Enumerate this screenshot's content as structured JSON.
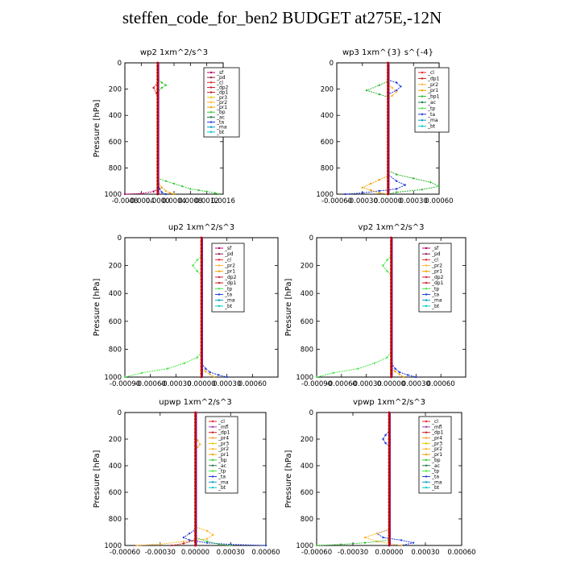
{
  "page": {
    "title": "steffen_code_for_ben2  BUDGET at275E,-12N"
  },
  "colors": {
    "sf": "#b8006e",
    "pd": "#8b2252",
    "cl": "#e8282a",
    "mfl": "#a040b0",
    "dp1": "#c81e1e",
    "dp2": "#d21e3c",
    "pr1": "#f0a000",
    "pr2": "#ffb432",
    "pr3": "#e6c800",
    "pr4": "#f0a028",
    "bp": "#3cc83c",
    "bp1": "#32b432",
    "ac": "#1e7850",
    "tp": "#46e646",
    "ta": "#1e3cdc",
    "ma": "#00a0c8",
    "bt": "#00c8c8"
  },
  "chart_data": [
    {
      "type": "line",
      "title": "wp2   1xm^2/s^3",
      "ylabel": "Pressure [hPa]",
      "xlim": [
        -0.0008,
        0.0016
      ],
      "ylim": [
        0,
        1000
      ],
      "xticks": [
        "-0.0008",
        "-0.0004",
        "0.0000",
        "0.0004",
        "0.0008",
        "0.0012",
        "0.0016"
      ],
      "yticks": [
        "0",
        "200",
        "400",
        "600",
        "800",
        "1000"
      ],
      "legend": [
        "_sf",
        "_pd",
        "_cl",
        "_dp2",
        "_dp1",
        "_pr3",
        "_pr2",
        "_pr1",
        "_bp",
        "_ac",
        "_ta",
        "_ma",
        "_bt"
      ],
      "series": [
        {
          "key": "bp",
          "x": [
            0,
            0,
            0.0001,
            0.0002,
            0.0001,
            0,
            0,
            0,
            0.0002,
            0.0004,
            0.0006,
            0.0008,
            0.001,
            0.0012,
            0.0014,
            0.0015
          ],
          "y": [
            0,
            120,
            150,
            170,
            190,
            220,
            300,
            880,
            900,
            920,
            940,
            960,
            970,
            980,
            990,
            1000
          ]
        },
        {
          "key": "sf",
          "x": [
            0,
            0,
            0,
            0,
            -0.0001,
            -0.0004,
            -0.0008
          ],
          "y": [
            0,
            600,
            900,
            960,
            980,
            995,
            1000
          ]
        },
        {
          "key": "pr1",
          "x": [
            0,
            0,
            0.0001,
            0.0002,
            0.0003,
            0.0004
          ],
          "y": [
            0,
            900,
            950,
            975,
            990,
            1000
          ]
        },
        {
          "key": "ta",
          "x": [
            0,
            0,
            0,
            5e-05,
            0.0001,
            0.0002
          ],
          "y": [
            0,
            800,
            900,
            960,
            985,
            1000
          ]
        },
        {
          "key": "dp1",
          "x": [
            0,
            0,
            -0.0001,
            -3e-05,
            0,
            0,
            0
          ],
          "y": [
            0,
            150,
            190,
            230,
            260,
            600,
            1000
          ]
        }
      ]
    },
    {
      "type": "line",
      "title": "wp3   1xm^{3} s^{-4}",
      "ylabel": "",
      "xlim": [
        -0.0006,
        0.0006
      ],
      "ylim": [
        0,
        1000
      ],
      "xticks": [
        "-0.00060",
        "-0.00030",
        "0.00000",
        "0.00030",
        "0.00060"
      ],
      "yticks": [
        "0",
        "200",
        "400",
        "600",
        "800",
        "1000"
      ],
      "legend": [
        "_cl",
        "_dp1",
        "_pr2",
        "_pr1",
        "_bp1",
        "_ac",
        "_tp",
        "_ta",
        "_ma",
        "_bt"
      ],
      "series": [
        {
          "key": "bp1",
          "x": [
            0,
            0,
            -0.0001,
            -0.00025,
            -0.0001,
            0,
            0,
            0.0001,
            0.0003,
            0.0005,
            0.0006,
            0.0004,
            0.0001,
            0
          ],
          "y": [
            0,
            140,
            170,
            210,
            240,
            260,
            820,
            850,
            880,
            910,
            940,
            965,
            985,
            1000
          ]
        },
        {
          "key": "ta",
          "x": [
            0,
            0,
            0.0001,
            0.00015,
            0.0001,
            0,
            0,
            0.0001,
            0.0002,
            0.0001,
            -0.0001,
            -0.0003,
            -0.0005
          ],
          "y": [
            0,
            130,
            150,
            180,
            210,
            240,
            850,
            900,
            930,
            960,
            975,
            990,
            1000
          ]
        },
        {
          "key": "pr1",
          "x": [
            0,
            0,
            -0.0001,
            -0.0002,
            -0.0003,
            -0.0002,
            -0.0001,
            0
          ],
          "y": [
            0,
            860,
            890,
            920,
            950,
            970,
            990,
            1000
          ]
        },
        {
          "key": "pr2",
          "x": [
            0,
            0,
            5e-05,
            0.0001,
            5e-05,
            0
          ],
          "y": [
            0,
            160,
            190,
            220,
            250,
            270
          ]
        }
      ]
    },
    {
      "type": "line",
      "title": "up2   1xm^2/s^3",
      "ylabel": "Pressure [hPa]",
      "xlim": [
        -0.0009,
        0.0009
      ],
      "ylim": [
        0,
        1000
      ],
      "xticks": [
        "-0.00090",
        "-0.00060",
        "-0.00030",
        "0.00000",
        "0.00030",
        "0.00060"
      ],
      "yticks": [
        "0",
        "200",
        "400",
        "600",
        "800",
        "1000"
      ],
      "legend": [
        "_sf",
        "_pd",
        "_cl",
        "_pr2",
        "_pr1",
        "_dp2",
        "_dp1",
        "_tp",
        "_ta",
        "_ma",
        "_bt"
      ],
      "series": [
        {
          "key": "tp",
          "x": [
            0,
            0,
            -5e-05,
            -0.0001,
            -5e-05,
            0,
            0,
            -5e-05,
            -0.0002,
            -0.0004,
            -0.0007,
            -0.0009
          ],
          "y": [
            0,
            130,
            160,
            200,
            240,
            270,
            820,
            860,
            900,
            940,
            970,
            1000
          ]
        },
        {
          "key": "ta",
          "x": [
            0,
            0,
            5e-05,
            0.0001,
            0.0002,
            0.0003
          ],
          "y": [
            0,
            900,
            940,
            965,
            985,
            1000
          ]
        },
        {
          "key": "pr1",
          "x": [
            0,
            0,
            5e-05,
            0.0001,
            0.00015
          ],
          "y": [
            0,
            930,
            960,
            980,
            1000
          ]
        }
      ]
    },
    {
      "type": "line",
      "title": "vp2   1xm^2/s^3",
      "ylabel": "Pressure [hPa]",
      "xlim": [
        -0.0009,
        0.0009
      ],
      "ylim": [
        0,
        1000
      ],
      "xticks": [
        "-0.00090",
        "-0.00060",
        "-0.00030",
        "0.00000",
        "0.00030",
        "0.00060"
      ],
      "yticks": [
        "0",
        "200",
        "400",
        "600",
        "800",
        "1000"
      ],
      "legend": [
        "_sf",
        "_pd",
        "_cl",
        "_pr2",
        "_pr1",
        "_dp2",
        "_dp1",
        "_tp",
        "_ta",
        "_ma",
        "_bt"
      ],
      "series": [
        {
          "key": "tp",
          "x": [
            0,
            0,
            -5e-05,
            -0.0001,
            -5e-05,
            0,
            0,
            -5e-05,
            -0.0002,
            -0.0004,
            -0.0007,
            -0.0009
          ],
          "y": [
            0,
            130,
            160,
            200,
            240,
            270,
            820,
            860,
            900,
            940,
            970,
            1000
          ]
        },
        {
          "key": "ta",
          "x": [
            0,
            0,
            5e-05,
            0.0001,
            0.0002,
            0.0003
          ],
          "y": [
            0,
            900,
            940,
            965,
            985,
            1000
          ]
        },
        {
          "key": "pr1",
          "x": [
            0,
            0,
            5e-05,
            0.0001,
            0.00015
          ],
          "y": [
            0,
            930,
            960,
            980,
            1000
          ]
        }
      ]
    },
    {
      "type": "line",
      "title": "upwp   1xm^2/s^3",
      "ylabel": "Pressure [hPa]",
      "xlim": [
        -0.0006,
        0.0006
      ],
      "ylim": [
        0,
        1000
      ],
      "xticks": [
        "-0.00060",
        "-0.00030",
        "0.00000",
        "0.00030",
        "0.00060"
      ],
      "yticks": [
        "0",
        "200",
        "400",
        "600",
        "800",
        "1000"
      ],
      "legend": [
        "_cl",
        "_mfl",
        "_dp1",
        "_pr4",
        "_pr3",
        "_pr2",
        "_pr1",
        "_bp",
        "_ac",
        "_tp",
        "_ta",
        "_ma",
        "_bt"
      ],
      "series": [
        {
          "key": "pr2",
          "x": [
            0,
            0,
            2e-05,
            4e-05,
            2e-05,
            0,
            0,
            0.0001,
            0.00015,
            0.0001,
            -0.0001,
            -0.0003,
            -0.0005
          ],
          "y": [
            0,
            180,
            210,
            240,
            260,
            280,
            860,
            890,
            920,
            950,
            970,
            990,
            1000
          ]
        },
        {
          "key": "ta",
          "x": [
            0,
            0,
            -5e-05,
            -0.0001,
            -5e-05,
            0.0001,
            0.0003,
            0.0006
          ],
          "y": [
            0,
            880,
            910,
            940,
            960,
            980,
            992,
            1000
          ]
        },
        {
          "key": "bp",
          "x": [
            0,
            0,
            0.0001,
            0.0002,
            0.0003
          ],
          "y": [
            0,
            940,
            970,
            990,
            1000
          ]
        },
        {
          "key": "dp1",
          "x": [
            0,
            0,
            -0.0001,
            -0.0002
          ],
          "y": [
            0,
            960,
            985,
            1000
          ]
        }
      ]
    },
    {
      "type": "line",
      "title": "vpwp   1xm^2/s^3",
      "ylabel": "Pressure [hPa]",
      "xlim": [
        -0.0006,
        0.0006
      ],
      "ylim": [
        0,
        1000
      ],
      "xticks": [
        "-0.00060",
        "-0.00030",
        "0.00000",
        "0.00030",
        "0.00060"
      ],
      "yticks": [
        "0",
        "200",
        "400",
        "600",
        "800",
        "1000"
      ],
      "legend": [
        "_cl",
        "_mfl",
        "_dp1",
        "_pr4",
        "_pr3",
        "_pr2",
        "_pr1",
        "_bp",
        "_ac",
        "_tp",
        "_ta",
        "_ma",
        "_bt"
      ],
      "series": [
        {
          "key": "ta",
          "x": [
            0,
            0,
            -3e-05,
            -5e-05,
            -3e-05,
            0,
            0,
            -0.0001,
            -5e-05,
            0.0001,
            0.0002,
            0.0001
          ],
          "y": [
            0,
            140,
            170,
            200,
            230,
            250,
            880,
            910,
            940,
            960,
            980,
            1000
          ]
        },
        {
          "key": "pr2",
          "x": [
            0,
            0,
            -0.0001,
            -0.0002,
            -0.0001,
            0.0001
          ],
          "y": [
            0,
            880,
            910,
            940,
            970,
            1000
          ]
        },
        {
          "key": "bp",
          "x": [
            0,
            0,
            -0.0002,
            -0.0004,
            -0.0006
          ],
          "y": [
            0,
            960,
            980,
            992,
            1000
          ]
        }
      ]
    }
  ]
}
